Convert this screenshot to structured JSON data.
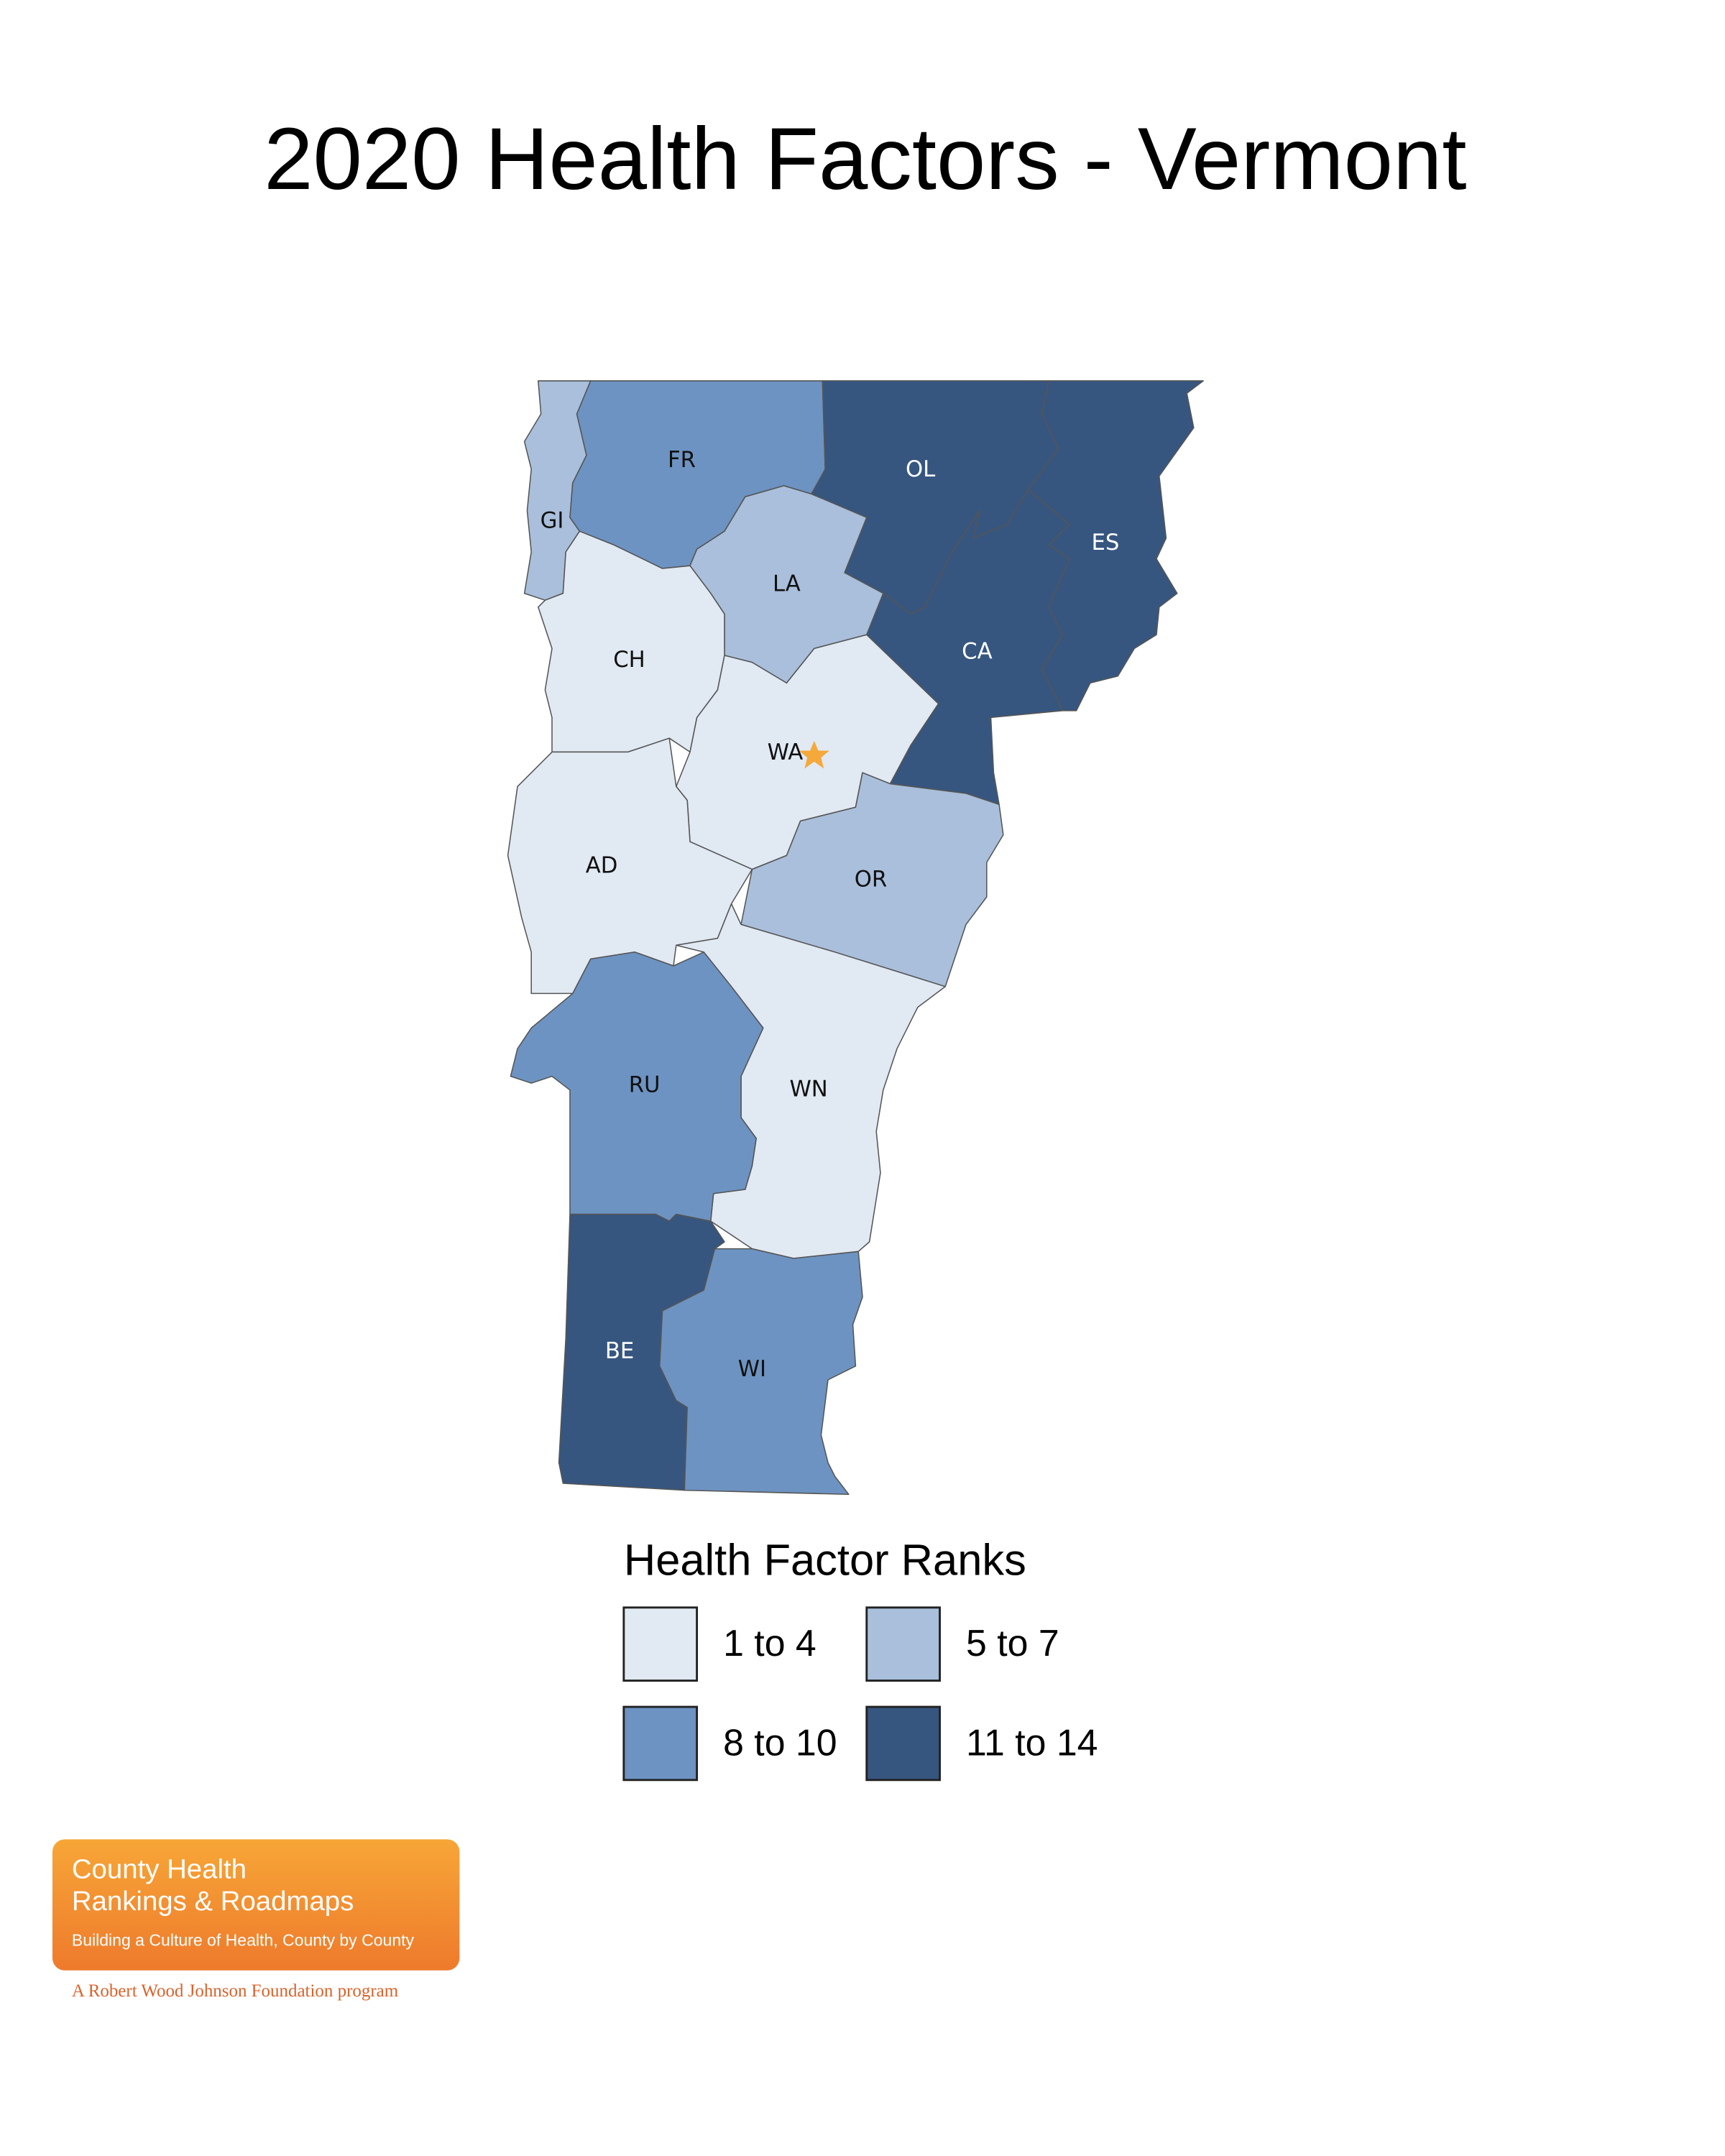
{
  "title": "2020 Health Factors - Vermont",
  "counties": [
    {
      "label": "GI",
      "color": "#a9bfdb",
      "label_color": "#111111"
    },
    {
      "label": "FR",
      "color": "#6d93c2",
      "label_color": "#111111"
    },
    {
      "label": "OL",
      "color": "#365680",
      "label_color": "#ffffff"
    },
    {
      "label": "ES",
      "color": "#365680",
      "label_color": "#ffffff"
    },
    {
      "label": "CA",
      "color": "#365680",
      "label_color": "#ffffff"
    },
    {
      "label": "LA",
      "color": "#a9bfdb",
      "label_color": "#111111"
    },
    {
      "label": "CH",
      "color": "#e1e9f3",
      "label_color": "#111111"
    },
    {
      "label": "WA",
      "color": "#e1e9f3",
      "label_color": "#111111"
    },
    {
      "label": "AD",
      "color": "#e1e9f3",
      "label_color": "#111111"
    },
    {
      "label": "OR",
      "color": "#a9bfdb",
      "label_color": "#111111"
    },
    {
      "label": "WN",
      "color": "#e1e9f3",
      "label_color": "#111111"
    },
    {
      "label": "RU",
      "color": "#6d93c2",
      "label_color": "#111111"
    },
    {
      "label": "BE",
      "color": "#365680",
      "label_color": "#ffffff"
    },
    {
      "label": "WI",
      "color": "#6d93c2",
      "label_color": "#111111"
    }
  ],
  "legend": {
    "title": "Health Factor Ranks",
    "items": [
      {
        "label": "1 to 4",
        "color": "#e1e9f3"
      },
      {
        "label": "5 to 7",
        "color": "#a9bfdb"
      },
      {
        "label": "8 to 10",
        "color": "#6d93c2"
      },
      {
        "label": "11 to 14",
        "color": "#365680"
      }
    ]
  },
  "logo": {
    "line1": "County Health",
    "line2": "Rankings & Roadmaps",
    "tagline": "Building a Culture of Health, County by County",
    "program": "A Robert Wood Johnson Foundation program"
  }
}
